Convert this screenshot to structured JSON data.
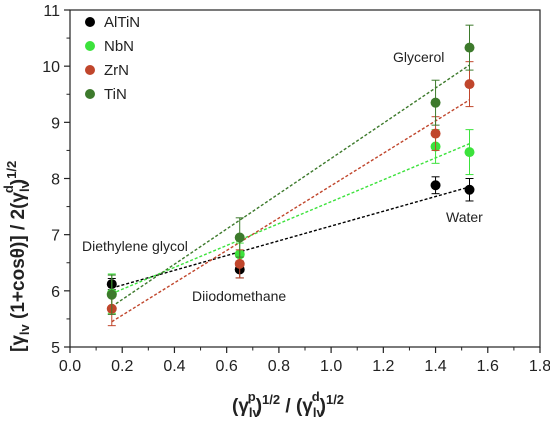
{
  "chart_data": {
    "type": "scatter",
    "xlim": [
      0.0,
      1.8
    ],
    "ylim": [
      5,
      11
    ],
    "xticks": [
      "0.0",
      "0.2",
      "0.4",
      "0.6",
      "0.8",
      "1.0",
      "1.2",
      "1.4",
      "1.6",
      "1.8"
    ],
    "yticks": [
      "5",
      "6",
      "7",
      "8",
      "9",
      "10",
      "11"
    ],
    "xlabel": {
      "open": "(γ",
      "sub1": "lv",
      "sup1": "p",
      "mid": ")",
      "pow1": "1/2",
      "slash": " / (γ",
      "sub2": "lv",
      "sup2": "d",
      "close": ")",
      "pow2": "1/2"
    },
    "ylabel": {
      "open": "[γ",
      "sub1": "lv",
      "mid": " (1+cosθ)] / 2(γ",
      "sub2": "lv",
      "sup": "d",
      "close": ")",
      "pow": "1/2"
    },
    "legend_position": "top-left",
    "series": [
      {
        "name": "AlTiN",
        "color": "#000000",
        "x": [
          0.16,
          0.65,
          1.4,
          1.53
        ],
        "y": [
          6.12,
          6.38,
          7.88,
          7.8
        ],
        "err": [
          0.1,
          0.15,
          0.15,
          0.2
        ],
        "fit": [
          [
            0.16,
            6.05
          ],
          [
            1.53,
            7.85
          ]
        ]
      },
      {
        "name": "NbN",
        "color": "#3ce23c",
        "x": [
          0.16,
          0.65,
          1.4,
          1.53
        ],
        "y": [
          5.95,
          6.65,
          8.57,
          8.47
        ],
        "err": [
          0.35,
          0.2,
          0.3,
          0.4
        ],
        "fit": [
          [
            0.16,
            5.95
          ],
          [
            1.53,
            8.62
          ]
        ]
      },
      {
        "name": "ZrN",
        "color": "#c0462c",
        "x": [
          0.16,
          0.65,
          1.4,
          1.53
        ],
        "y": [
          5.68,
          6.48,
          8.8,
          9.68
        ],
        "err": [
          0.3,
          0.25,
          0.3,
          0.4
        ],
        "fit": [
          [
            0.16,
            5.45
          ],
          [
            1.53,
            9.4
          ]
        ]
      },
      {
        "name": "TiN",
        "color": "#3d7a2c",
        "x": [
          0.16,
          0.65,
          1.4,
          1.53
        ],
        "y": [
          5.93,
          6.95,
          9.35,
          10.33
        ],
        "err": [
          0.35,
          0.35,
          0.4,
          0.4
        ],
        "fit": [
          [
            0.16,
            5.72
          ],
          [
            1.53,
            10.02
          ]
        ]
      }
    ],
    "annotations": [
      "Diethylene glycol",
      "Diiodomethane",
      "Glycerol",
      "Water"
    ]
  }
}
